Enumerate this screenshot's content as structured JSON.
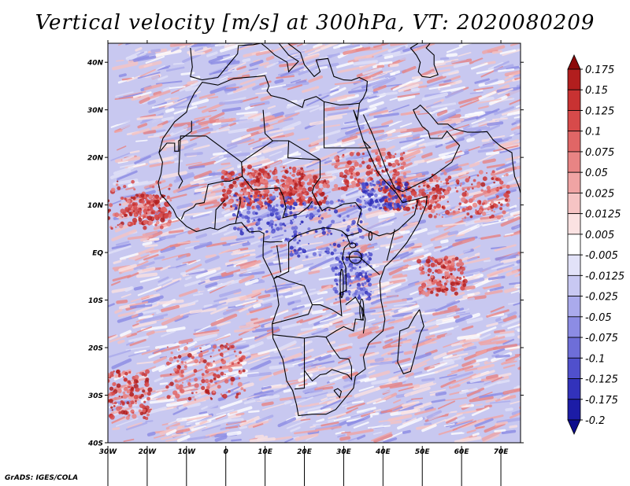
{
  "title": "Vertical velocity [m/s] at 300hPa, VT: 2020080209",
  "credit": "GrADS: IGES/COLA",
  "map": {
    "lat_ticks": [
      "40N",
      "30N",
      "20N",
      "10N",
      "EQ",
      "10S",
      "20S",
      "30S",
      "40S"
    ],
    "lon_ticks": [
      "30W",
      "20W",
      "10W",
      "0",
      "10E",
      "20E",
      "30E",
      "40E",
      "50E",
      "60E",
      "70E"
    ],
    "lat_range": [
      -40,
      44
    ],
    "lon_range": [
      -30,
      75
    ]
  },
  "colorbar": {
    "labels": [
      "0.175",
      "0.15",
      "0.125",
      "0.1",
      "0.075",
      "0.05",
      "0.025",
      "0.0125",
      "0.005",
      "-0.005",
      "-0.0125",
      "-0.025",
      "-0.05",
      "-0.075",
      "-0.1",
      "-0.125",
      "-0.175",
      "-0.2"
    ],
    "colors": [
      "#8c0a0a",
      "#b21e1e",
      "#c83232",
      "#d74a4a",
      "#e06666",
      "#e88484",
      "#f0a4a4",
      "#f6c4c4",
      "#fbe2e2",
      "#ffffff",
      "#e2e2f8",
      "#c8c8f2",
      "#aaaaec",
      "#8c8ce4",
      "#6e6ed8",
      "#5050cc",
      "#3232bb",
      "#1c1ca6",
      "#0c0c8c"
    ]
  }
}
